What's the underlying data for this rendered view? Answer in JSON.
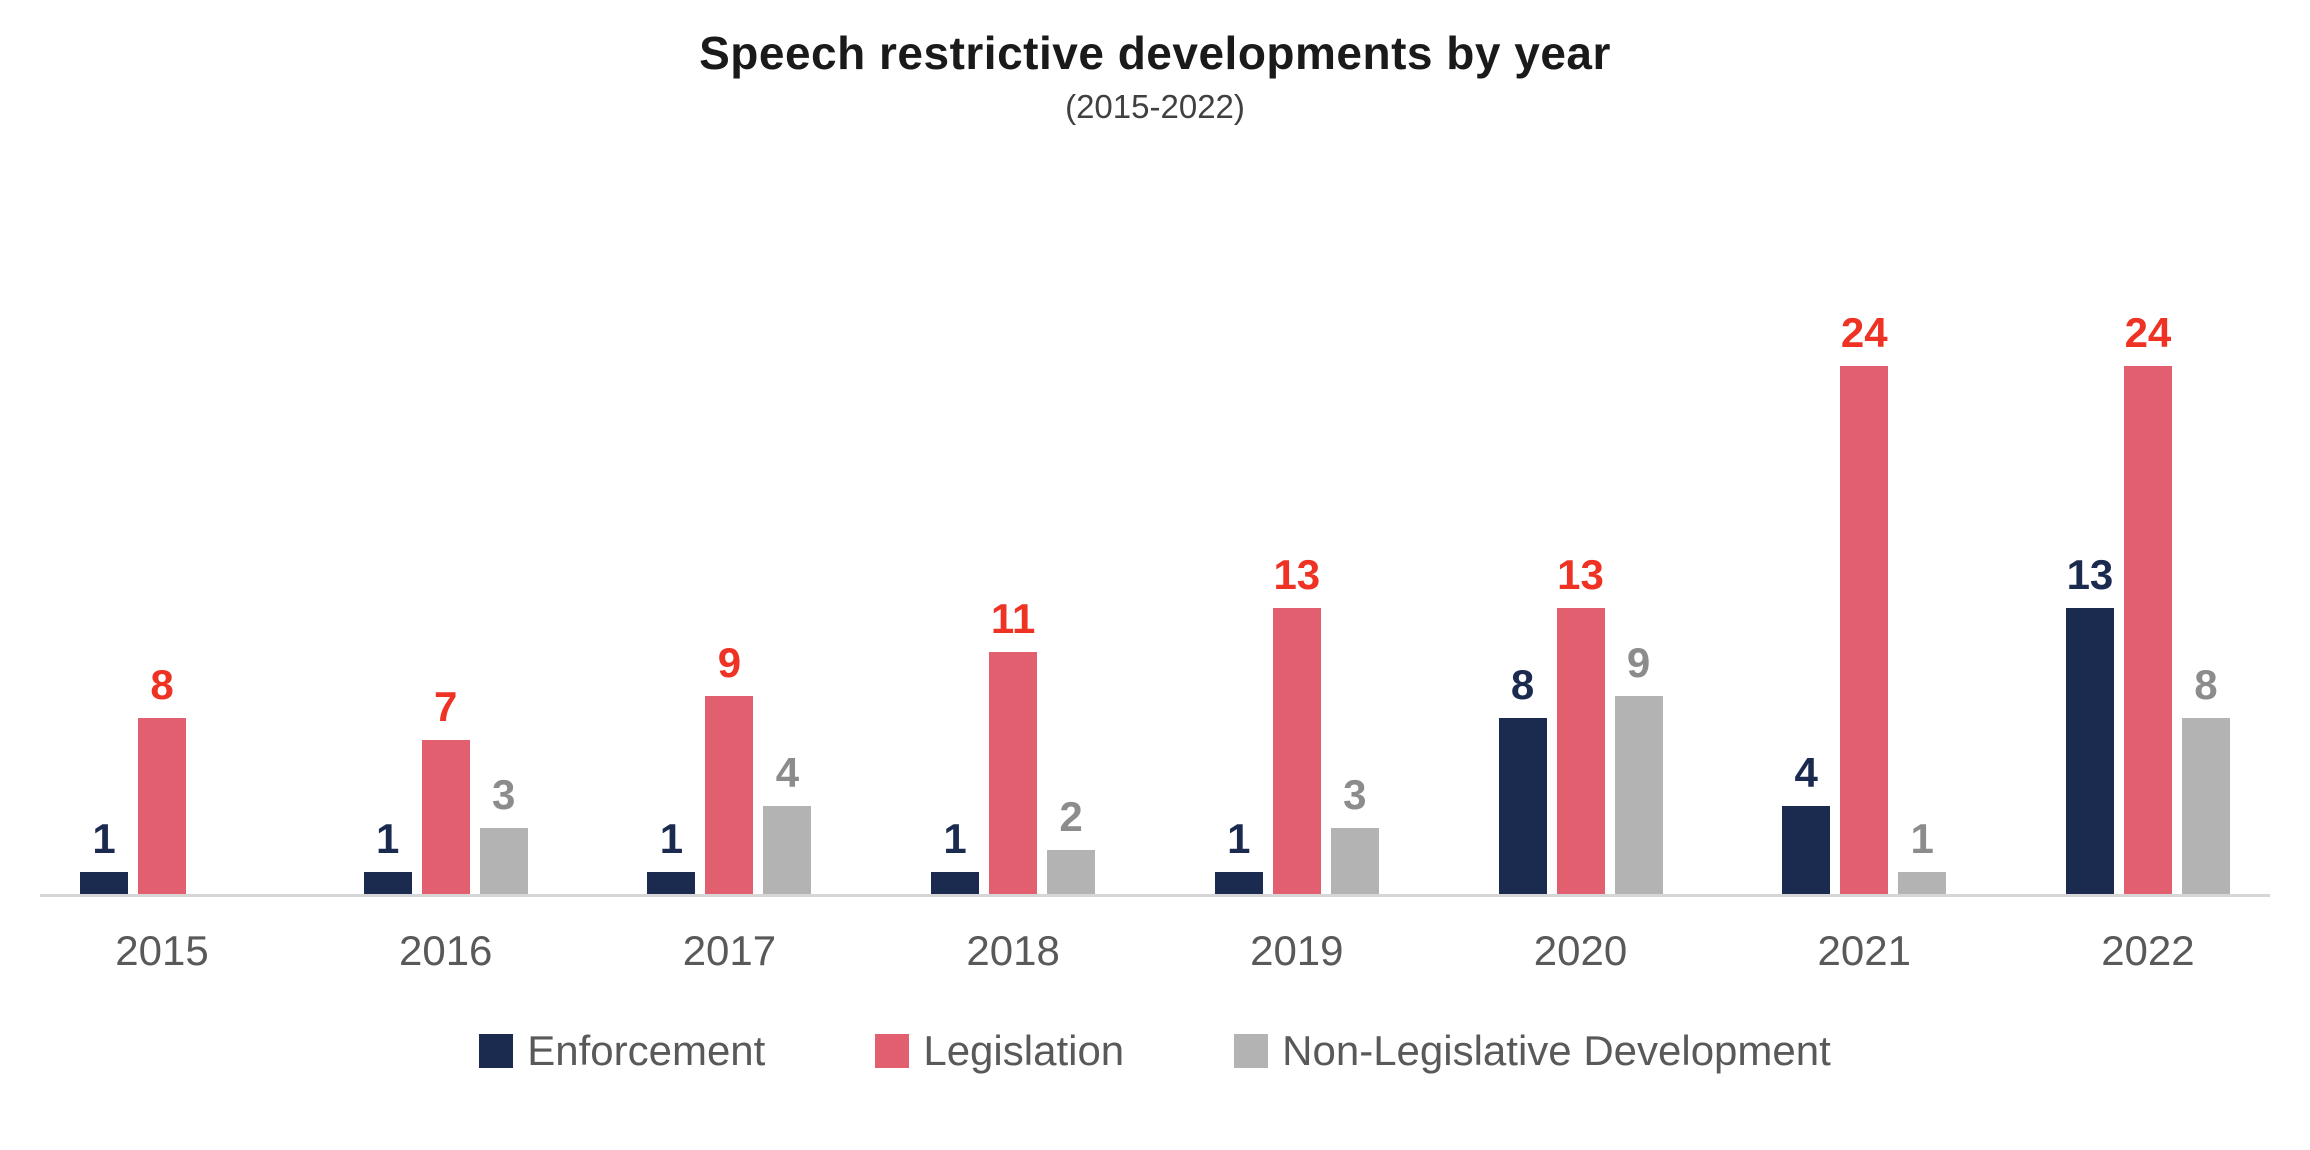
{
  "chart_data": {
    "type": "bar",
    "title": "Speech restrictive developments by year",
    "subtitle": "(2015-2022)",
    "categories": [
      "2015",
      "2016",
      "2017",
      "2018",
      "2019",
      "2020",
      "2021",
      "2022"
    ],
    "series": [
      {
        "name": "Enforcement",
        "color": "#1b2a4f",
        "label_color": "#1b2a4f",
        "values": [
          1,
          1,
          1,
          1,
          1,
          8,
          4,
          13
        ]
      },
      {
        "name": "Legislation",
        "color": "#e25f6f",
        "label_color": "#ee3224",
        "values": [
          8,
          7,
          9,
          11,
          13,
          13,
          24,
          24
        ]
      },
      {
        "name": "Non-Legislative Development",
        "color": "#b3b3b3",
        "label_color": "#8c8c8c",
        "values": [
          0,
          3,
          4,
          2,
          3,
          9,
          1,
          8
        ]
      }
    ],
    "ylim": [
      0,
      26
    ],
    "xlabel": "",
    "ylabel": "",
    "grid": false,
    "legend_position": "bottom"
  }
}
